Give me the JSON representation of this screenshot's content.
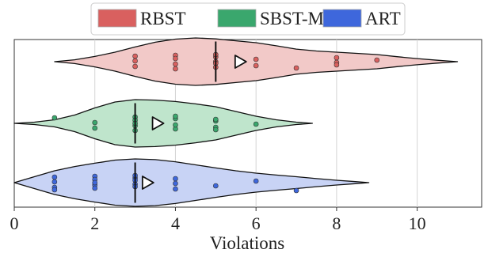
{
  "chart_data": {
    "type": "violin",
    "title": "",
    "xlabel": "Violations",
    "ylabel": "",
    "xlim": [
      0,
      11.6
    ],
    "xticks": [
      0,
      2,
      4,
      6,
      8,
      10
    ],
    "xtick_labels": [
      "0",
      "2",
      "4",
      "6",
      "8",
      "10"
    ],
    "grid": "vertical",
    "legend": {
      "placement": "top-center",
      "entries": [
        "RBST",
        "SBST-ML",
        "ART"
      ]
    },
    "series": [
      {
        "name": "RBST",
        "color": "#d9605f",
        "fill": "#f2c9c8",
        "median": 5,
        "mean": 5.6,
        "range": [
          1.0,
          11.0
        ],
        "density": [
          [
            1.0,
            0.0
          ],
          [
            1.5,
            0.08
          ],
          [
            2.0,
            0.22
          ],
          [
            2.5,
            0.4
          ],
          [
            3.0,
            0.62
          ],
          [
            3.5,
            0.82
          ],
          [
            4.0,
            0.95
          ],
          [
            4.5,
            1.0
          ],
          [
            5.0,
            0.96
          ],
          [
            5.5,
            0.88
          ],
          [
            6.0,
            0.8
          ],
          [
            6.5,
            0.67
          ],
          [
            7.0,
            0.53
          ],
          [
            7.5,
            0.45
          ],
          [
            8.0,
            0.4
          ],
          [
            8.5,
            0.35
          ],
          [
            9.0,
            0.3
          ],
          [
            9.5,
            0.21
          ],
          [
            10.0,
            0.13
          ],
          [
            10.5,
            0.06
          ],
          [
            11.0,
            0.0
          ]
        ],
        "points": [
          3,
          3,
          3,
          4,
          4,
          4,
          4,
          5,
          5,
          5,
          5,
          5,
          6,
          6,
          7,
          8,
          8,
          8,
          9
        ]
      },
      {
        "name": "SBST-ML",
        "color": "#3aa76d",
        "fill": "#bfe5cc",
        "median": 3,
        "mean": 3.55,
        "range": [
          0.0,
          7.4
        ],
        "density": [
          [
            0.0,
            0.0
          ],
          [
            0.5,
            0.05
          ],
          [
            1.0,
            0.15
          ],
          [
            1.5,
            0.35
          ],
          [
            2.0,
            0.65
          ],
          [
            2.5,
            0.9
          ],
          [
            3.0,
            1.0
          ],
          [
            3.5,
            0.98
          ],
          [
            4.0,
            0.92
          ],
          [
            4.5,
            0.82
          ],
          [
            5.0,
            0.7
          ],
          [
            5.5,
            0.5
          ],
          [
            6.0,
            0.3
          ],
          [
            6.5,
            0.15
          ],
          [
            7.0,
            0.05
          ],
          [
            7.4,
            0.0
          ]
        ],
        "points": [
          1,
          2,
          2,
          3,
          3,
          3,
          3,
          3,
          4,
          4,
          4,
          4,
          5,
          5,
          5,
          5,
          6
        ]
      },
      {
        "name": "ART",
        "color": "#3e67dc",
        "fill": "#c8d3f5",
        "median": 3,
        "mean": 3.3,
        "range": [
          0.0,
          8.8
        ],
        "density": [
          [
            0.0,
            0.0
          ],
          [
            0.5,
            0.25
          ],
          [
            1.0,
            0.5
          ],
          [
            1.5,
            0.68
          ],
          [
            2.0,
            0.82
          ],
          [
            2.5,
            0.95
          ],
          [
            3.0,
            1.0
          ],
          [
            3.5,
            0.97
          ],
          [
            4.0,
            0.88
          ],
          [
            4.5,
            0.75
          ],
          [
            5.0,
            0.62
          ],
          [
            5.5,
            0.5
          ],
          [
            6.0,
            0.4
          ],
          [
            6.5,
            0.32
          ],
          [
            7.0,
            0.25
          ],
          [
            7.5,
            0.17
          ],
          [
            8.0,
            0.1
          ],
          [
            8.5,
            0.04
          ],
          [
            8.8,
            0.0
          ]
        ],
        "points": [
          1,
          1,
          1,
          1,
          2,
          2,
          2,
          2,
          2,
          3,
          3,
          3,
          3,
          3,
          4,
          4,
          4,
          5,
          6,
          7
        ]
      }
    ]
  }
}
